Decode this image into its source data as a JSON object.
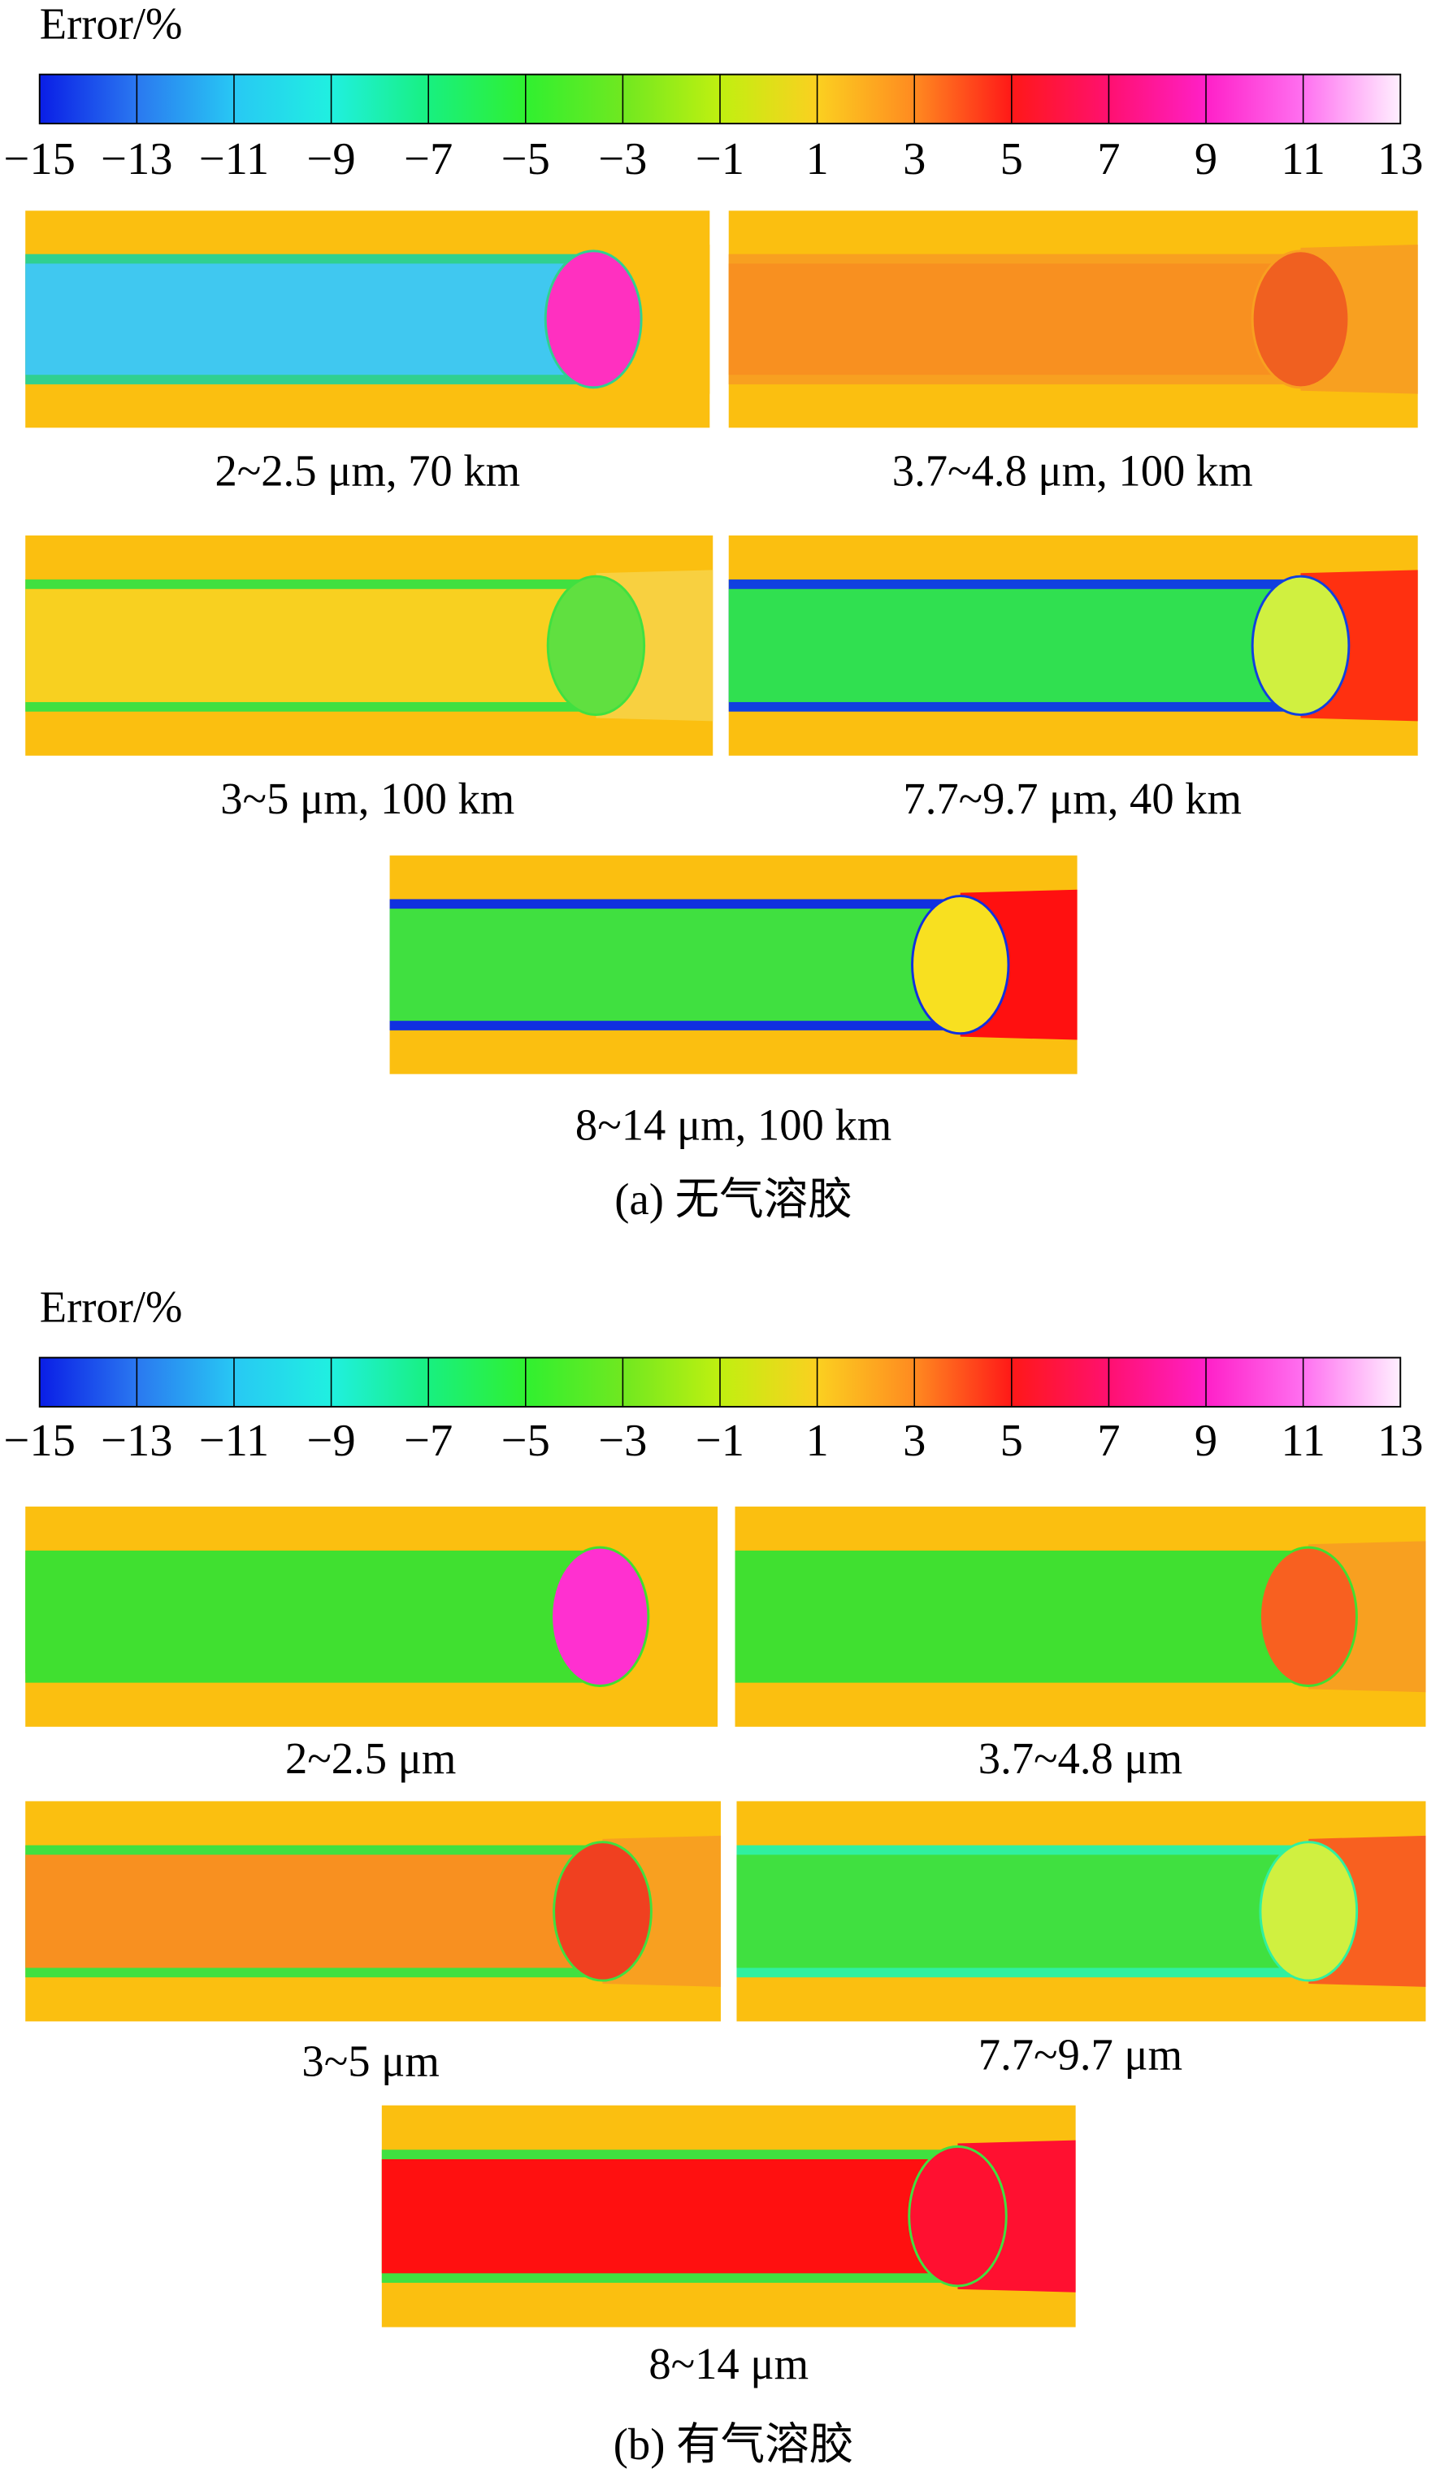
{
  "parts": [
    {
      "colorbar": {
        "label": "Error/%",
        "ticks": [
          {
            "value": -15,
            "label": "−15"
          },
          {
            "value": -13,
            "label": "−13"
          },
          {
            "value": -11,
            "label": "−11"
          },
          {
            "value": -9,
            "label": "−9"
          },
          {
            "value": -7,
            "label": "−7"
          },
          {
            "value": -5,
            "label": "−5"
          },
          {
            "value": -3,
            "label": "−3"
          },
          {
            "value": -1,
            "label": "−1"
          },
          1,
          3,
          5,
          7,
          9,
          11,
          13
        ],
        "colors": [
          "#0a1ee6",
          "#2a78f0",
          "#28c8f4",
          "#20f0e0",
          "#18f080",
          "#30f030",
          "#70e820",
          "#c0f010",
          "#fbd020",
          "#ff8a20",
          "#ff1818",
          "#ff1070",
          "#ff20c8",
          "#ff70f0",
          "#fff0ff"
        ]
      },
      "panels": [
        {
          "label": "2~2.5 μm, 70 km",
          "core": "#40c8f0",
          "edge": "#30d090",
          "cap": "#ff30c0",
          "rest": "#fbbf10"
        },
        {
          "label": "3.7~4.8 μm, 100 km",
          "core": "#f89020",
          "edge": "#f8a020",
          "cap": "#f06020",
          "rest": "#f8a020"
        },
        {
          "label": "3~5 μm, 100 km",
          "core": "#f8d020",
          "edge": "#40e040",
          "cap": "#60e040",
          "rest": "#f8d040"
        },
        {
          "label": "7.7~9.7 μm, 40 km",
          "core": "#30e050",
          "edge": "#1040e0",
          "cap": "#d0f040",
          "rest": "#ff3010"
        },
        {
          "label": "8~14 μm, 100 km",
          "core": "#40e040",
          "edge": "#1030e0",
          "cap": "#f8e020",
          "rest": "#ff1010"
        }
      ],
      "caption": "(a) 无气溶胶"
    },
    {
      "colorbar": {
        "label": "Error/%",
        "ticks": [
          {
            "value": -15,
            "label": "−15"
          },
          {
            "value": -13,
            "label": "−13"
          },
          {
            "value": -11,
            "label": "−11"
          },
          {
            "value": -9,
            "label": "−9"
          },
          {
            "value": -7,
            "label": "−7"
          },
          {
            "value": -5,
            "label": "−5"
          },
          {
            "value": -3,
            "label": "−3"
          },
          {
            "value": -1,
            "label": "−1"
          },
          1,
          3,
          5,
          7,
          9,
          11,
          13
        ],
        "colors": [
          "#0a1ee6",
          "#2a78f0",
          "#28c8f4",
          "#20f0e0",
          "#18f080",
          "#30f030",
          "#70e820",
          "#c0f010",
          "#fbd020",
          "#ff8a20",
          "#ff1818",
          "#ff1070",
          "#ff20c8",
          "#ff70f0",
          "#fff0ff"
        ]
      },
      "panels": [
        {
          "label": "2~2.5 μm",
          "core": "#40e030",
          "edge": "#40e030",
          "cap": "#ff30d0",
          "rest": "#fbbf10"
        },
        {
          "label": "3.7~4.8 μm",
          "core": "#40e030",
          "edge": "#40e030",
          "cap": "#f86020",
          "rest": "#f8a020"
        },
        {
          "label": "3~5 μm",
          "core": "#f89020",
          "edge": "#40e040",
          "cap": "#f04020",
          "rest": "#f8a020"
        },
        {
          "label": "7.7~9.7 μm",
          "core": "#40e040",
          "edge": "#30f0a0",
          "cap": "#d0f040",
          "rest": "#f86020"
        },
        {
          "label": "8~14 μm",
          "core": "#ff1010",
          "edge": "#40e040",
          "cap": "#ff1030",
          "rest": "#ff1030"
        }
      ],
      "caption": "(b) 有气溶胶"
    }
  ]
}
